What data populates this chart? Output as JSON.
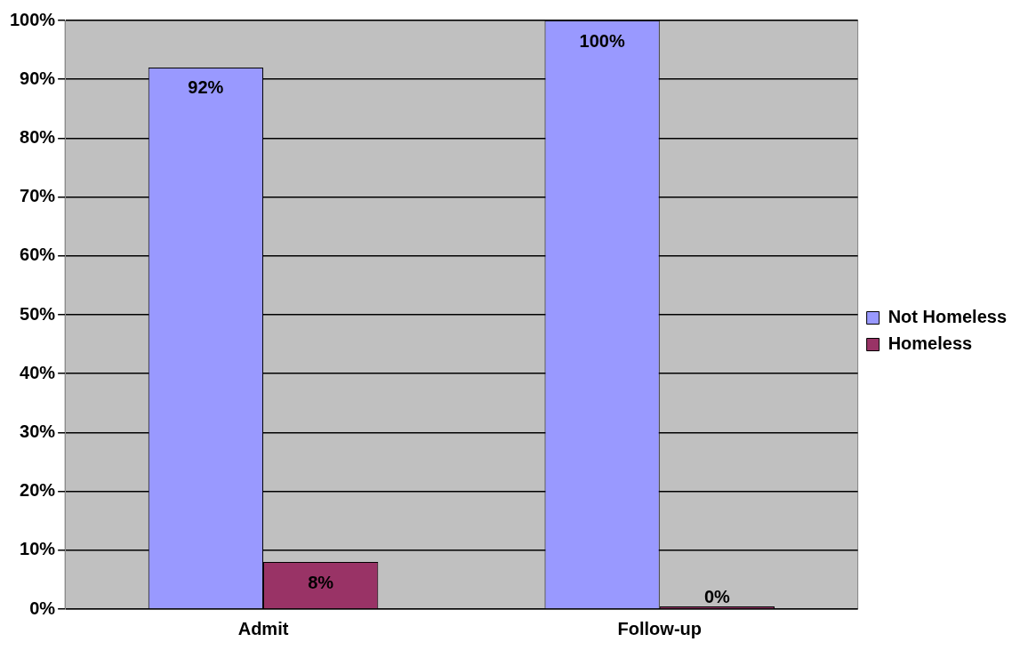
{
  "chart_data": {
    "type": "bar",
    "categories": [
      "Admit",
      "Follow-up"
    ],
    "series": [
      {
        "name": "Not Homeless",
        "color": "#9999ff",
        "values": [
          92,
          100
        ],
        "value_labels": [
          "92%",
          "100%"
        ]
      },
      {
        "name": "Homeless",
        "color": "#993366",
        "values": [
          8,
          0
        ],
        "value_labels": [
          "8%",
          "0%"
        ]
      }
    ],
    "ylim": [
      0,
      100
    ],
    "yticks": [
      {
        "value": 0,
        "label": "0%"
      },
      {
        "value": 10,
        "label": "10%"
      },
      {
        "value": 20,
        "label": "20%"
      },
      {
        "value": 30,
        "label": "30%"
      },
      {
        "value": 40,
        "label": "40%"
      },
      {
        "value": 50,
        "label": "50%"
      },
      {
        "value": 60,
        "label": "60%"
      },
      {
        "value": 70,
        "label": "70%"
      },
      {
        "value": 80,
        "label": "80%"
      },
      {
        "value": 90,
        "label": "90%"
      },
      {
        "value": 100,
        "label": "100%"
      }
    ],
    "grid": "y",
    "legend": "right"
  }
}
